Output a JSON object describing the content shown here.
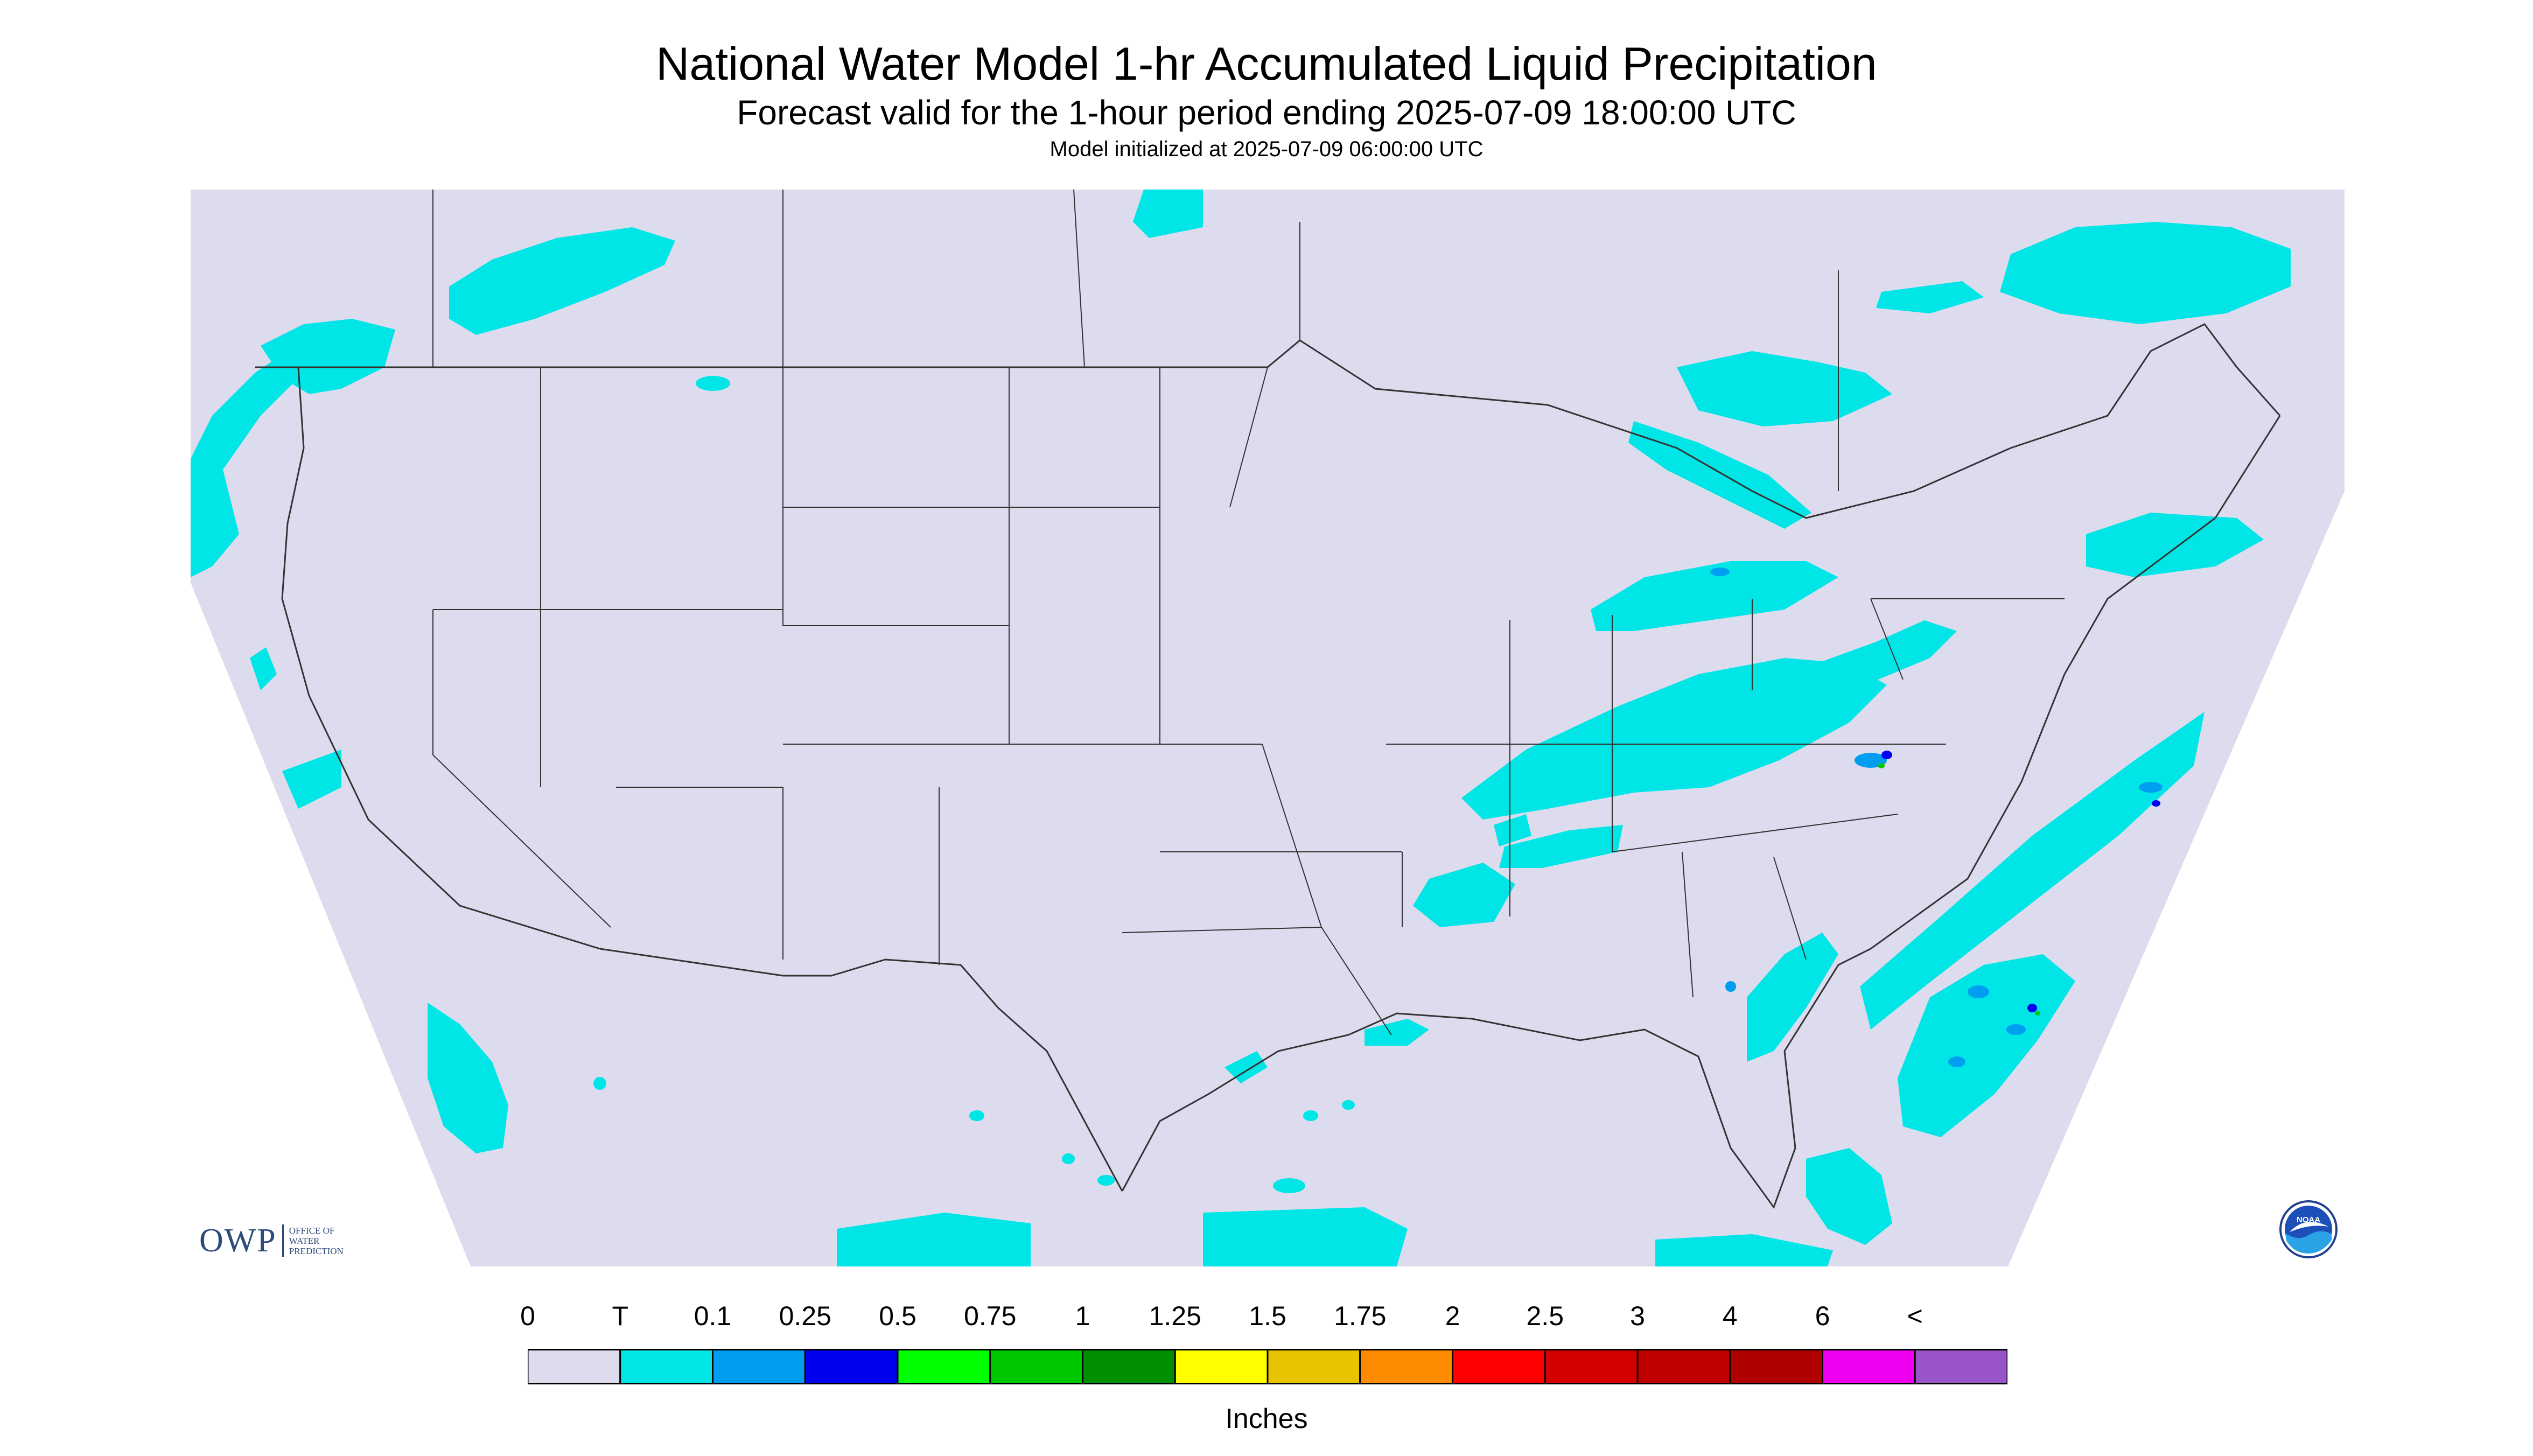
{
  "header": {
    "title": "National Water Model 1-hr Accumulated Liquid Precipitation",
    "subtitle": "Forecast valid for the 1-hour period ending 2025-07-09 18:00:00 UTC",
    "init_line": "Model initialized at 2025-07-09 06:00:00 UTC"
  },
  "map": {
    "background_color": "#dcdcee",
    "outside_color": "#ffffff",
    "border_color": "#333333",
    "precip_colors": {
      "trace": "#00e5e5",
      "light": "#009ef0",
      "heavy": "#0000f0",
      "green": "#00c800"
    }
  },
  "legend": {
    "tick_labels": [
      "0",
      "T",
      "0.1",
      "0.25",
      "0.5",
      "0.75",
      "1",
      "1.25",
      "1.5",
      "1.75",
      "2",
      "2.5",
      "3",
      "4",
      "6",
      "<"
    ],
    "bins": [
      {
        "color": "#dcdcee"
      },
      {
        "color": "#00e5e5"
      },
      {
        "color": "#009ef0"
      },
      {
        "color": "#0000f0"
      },
      {
        "color": "#00ff00"
      },
      {
        "color": "#00c800"
      },
      {
        "color": "#008f00"
      },
      {
        "color": "#ffff00"
      },
      {
        "color": "#e8c300"
      },
      {
        "color": "#ff8c00"
      },
      {
        "color": "#ff0000"
      },
      {
        "color": "#d40000"
      },
      {
        "color": "#c00000"
      },
      {
        "color": "#b00000"
      },
      {
        "color": "#f000f0"
      },
      {
        "color": "#9955c8"
      }
    ],
    "units": "Inches"
  },
  "logos": {
    "owp_word": "OWP",
    "owp_line1": "OFFICE OF",
    "owp_line2": "WATER",
    "owp_line3": "PREDICTION",
    "noaa_text": "NOAA",
    "noaa_icon": "noaa-seagull-logo"
  }
}
